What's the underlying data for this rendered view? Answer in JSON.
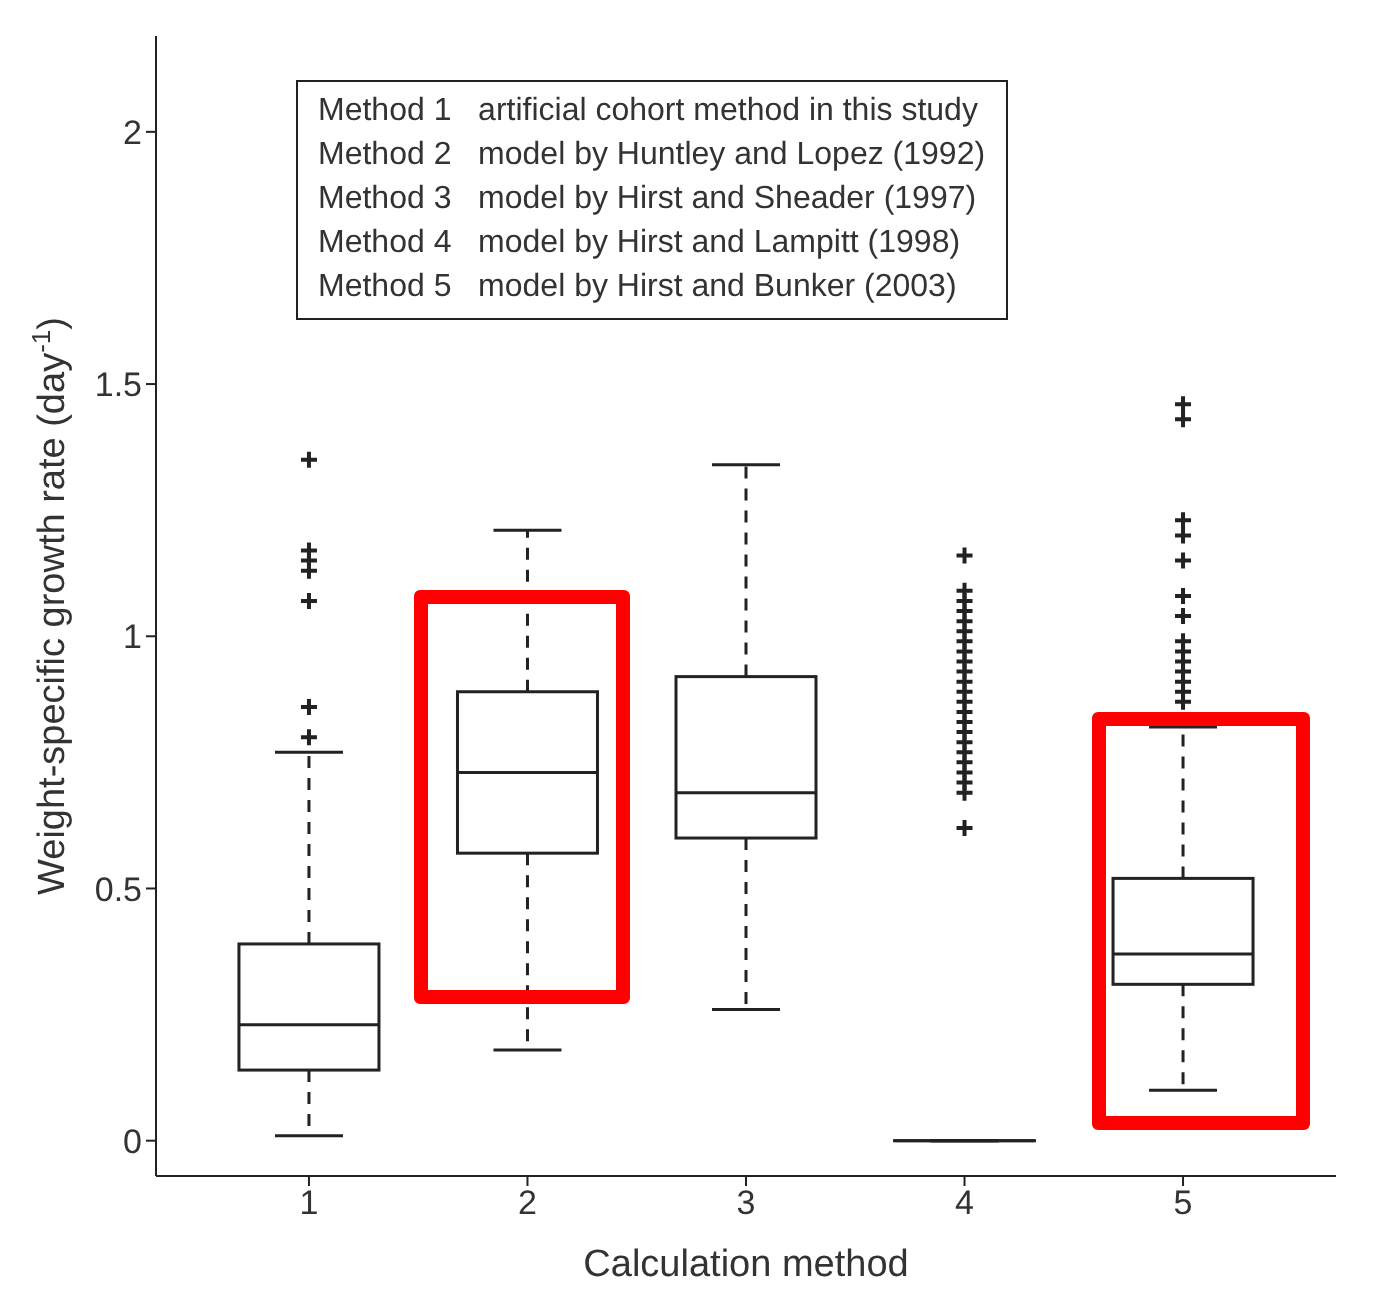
{
  "chart_data": {
    "type": "box",
    "xlabel": "Calculation method",
    "ylabel": "Weight-specific growth rate (day$^{-1}$)",
    "categories": [
      "1",
      "2",
      "3",
      "4",
      "5"
    ],
    "boxes": [
      {
        "low": 0.01,
        "q1": 0.14,
        "median": 0.23,
        "q3": 0.39,
        "high": 0.77,
        "outliers": [
          0.8,
          0.86,
          1.07,
          1.13,
          1.15,
          1.17,
          1.35
        ]
      },
      {
        "low": 0.18,
        "q1": 0.57,
        "median": 0.73,
        "q3": 0.89,
        "high": 1.21
      },
      {
        "low": 0.26,
        "q1": 0.6,
        "median": 0.69,
        "q3": 0.92,
        "high": 1.34
      },
      {
        "low": 0,
        "q1": 0,
        "median": 0,
        "q3": 0,
        "high": 0,
        "outliers": [
          0.62,
          0.69,
          0.71,
          0.73,
          0.75,
          0.77,
          0.79,
          0.81,
          0.83,
          0.85,
          0.87,
          0.89,
          0.91,
          0.93,
          0.95,
          0.97,
          0.99,
          1.01,
          1.03,
          1.05,
          1.07,
          1.09,
          1.16
        ]
      },
      {
        "low": 0.1,
        "q1": 0.31,
        "median": 0.37,
        "q3": 0.52,
        "high": 0.82,
        "outliers": [
          0.87,
          0.89,
          0.91,
          0.93,
          0.95,
          0.97,
          0.99,
          1.04,
          1.08,
          1.15,
          1.2,
          1.23,
          1.43,
          1.46
        ]
      }
    ],
    "ylim": [
      -0.07,
      2.19
    ],
    "yticks": [
      0,
      0.5,
      1,
      1.5,
      2
    ],
    "grid": false,
    "marker": "cross",
    "annotations": [
      "Method 1   artificial cohort method in this study",
      "Method 2   model by Huntley and Lopez (1992)",
      "Method 3   model by Hirst and Sheader (1997)",
      "Method 4   model by Hirst and Lampitt (1998)",
      "Method 5   model by Hirst and Bunker (2003)"
    ]
  }
}
